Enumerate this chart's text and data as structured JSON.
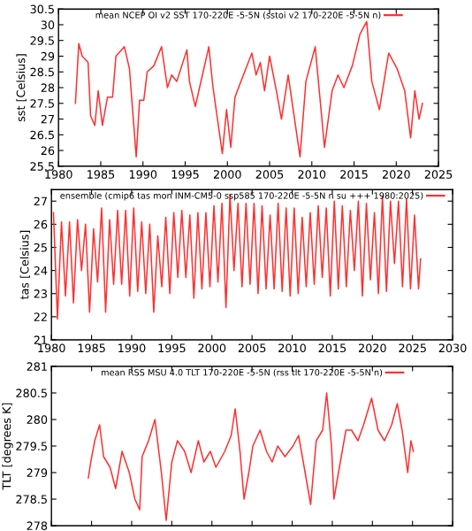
{
  "chart_data": [
    {
      "type": "line",
      "ylabel": "sst [Celsius]",
      "xlim": [
        1980,
        2025
      ],
      "xticks": [
        1980,
        1985,
        1990,
        1995,
        2000,
        2005,
        2010,
        2015,
        2020,
        2025
      ],
      "ylim": [
        25.5,
        30.5
      ],
      "yticks": [
        25.5,
        26,
        26.5,
        27,
        27.5,
        28,
        28.5,
        29,
        29.5,
        30,
        30.5
      ],
      "legend": "top",
      "grid": false,
      "series": [
        {
          "name": "mean NCEP OI v2 SST 170-220E -5-5N (sstoi v2 170-220E -5-5N n)",
          "color": "#ff3030",
          "x": [
            1982.0,
            1982.4,
            1982.8,
            1983.5,
            1983.8,
            1984.3,
            1984.7,
            1985.2,
            1985.8,
            1986.4,
            1986.8,
            1987.8,
            1988.4,
            1989.2,
            1989.6,
            1990.1,
            1990.5,
            1991.3,
            1992.2,
            1992.9,
            1993.4,
            1994.0,
            1995.2,
            1995.5,
            1996.2,
            1996.7,
            1997.8,
            1998.3,
            1999.4,
            1999.9,
            2000.4,
            2000.9,
            2001.6,
            2002.9,
            2003.4,
            2003.9,
            2004.4,
            2005.0,
            2005.8,
            2006.4,
            2007.2,
            2008.6,
            2009.3,
            2010.4,
            2011.5,
            2012.4,
            2013.1,
            2013.8,
            2014.8,
            2015.7,
            2016.5,
            2017.1,
            2018.0,
            2019.1,
            2020.1,
            2021.0,
            2021.7,
            2022.2,
            2022.7,
            2023.1
          ],
          "values": [
            27.5,
            29.4,
            29.0,
            28.8,
            27.1,
            26.8,
            27.9,
            26.8,
            27.7,
            27.7,
            29.0,
            29.3,
            28.6,
            25.8,
            27.6,
            27.6,
            28.5,
            28.7,
            29.3,
            28.0,
            28.4,
            28.2,
            29.2,
            28.2,
            27.4,
            28.0,
            29.3,
            28.0,
            25.9,
            27.3,
            26.1,
            27.7,
            28.2,
            29.1,
            28.4,
            28.8,
            27.9,
            29.0,
            27.9,
            27.0,
            28.4,
            25.8,
            28.2,
            29.3,
            26.1,
            27.9,
            28.4,
            28.0,
            28.7,
            29.7,
            30.1,
            28.2,
            27.3,
            29.1,
            28.6,
            27.9,
            26.4,
            27.9,
            27.0,
            27.5
          ]
        }
      ]
    },
    {
      "type": "line",
      "ylabel": "tas [Celsius]",
      "xlim": [
        1980,
        2030
      ],
      "xticks": [
        1980,
        1985,
        1990,
        1995,
        2000,
        2005,
        2010,
        2015,
        2020,
        2025,
        2030
      ],
      "ylim": [
        21,
        27.5
      ],
      "yticks": [
        21,
        22,
        23,
        24,
        25,
        26,
        27
      ],
      "legend": "top",
      "grid": false,
      "series": [
        {
          "name": "ensemble (cmip6 tas mon INM-CM5-0 ssp585 170-220E -5-5N n su +++ 1980:2025)",
          "color": "#ff3030",
          "x": [
            1980.25,
            1980.75,
            1981.25,
            1981.75,
            1982.25,
            1982.75,
            1983.25,
            1983.75,
            1984.25,
            1984.75,
            1985.25,
            1985.75,
            1986.25,
            1986.75,
            1987.25,
            1987.75,
            1988.25,
            1988.75,
            1989.25,
            1989.75,
            1990.25,
            1990.75,
            1991.25,
            1991.75,
            1992.25,
            1992.75,
            1993.25,
            1993.75,
            1994.25,
            1994.75,
            1995.25,
            1995.75,
            1996.25,
            1996.75,
            1997.25,
            1997.75,
            1998.25,
            1998.75,
            1999.25,
            1999.75,
            2000.25,
            2000.75,
            2001.25,
            2001.75,
            2002.25,
            2002.75,
            2003.25,
            2003.75,
            2004.25,
            2004.75,
            2005.25,
            2005.75,
            2006.25,
            2006.75,
            2007.25,
            2007.75,
            2008.25,
            2008.75,
            2009.25,
            2009.75,
            2010.25,
            2010.75,
            2011.25,
            2011.75,
            2012.25,
            2012.75,
            2013.25,
            2013.75,
            2014.25,
            2014.75,
            2015.25,
            2015.75,
            2016.25,
            2016.75,
            2017.25,
            2017.75,
            2018.25,
            2018.75,
            2019.25,
            2019.75,
            2020.25,
            2020.75,
            2021.25,
            2021.75,
            2022.25,
            2022.75,
            2023.25,
            2023.75,
            2024.25,
            2024.75,
            2025.25,
            2025.75,
            2026.0
          ],
          "values": [
            26.5,
            21.9,
            26.1,
            22.9,
            26.1,
            22.6,
            26.2,
            24.0,
            26.0,
            22.2,
            25.8,
            23.5,
            26.7,
            22.2,
            26.2,
            23.4,
            26.6,
            23.4,
            26.6,
            22.9,
            26.7,
            23.1,
            26.1,
            23.0,
            26.0,
            22.2,
            25.5,
            23.3,
            26.3,
            23.0,
            26.5,
            23.7,
            26.6,
            23.7,
            26.4,
            22.8,
            26.5,
            23.2,
            26.5,
            23.3,
            26.8,
            23.5,
            26.9,
            22.4,
            27.3,
            24.0,
            26.9,
            23.3,
            26.9,
            23.4,
            26.9,
            23.0,
            26.8,
            23.2,
            26.4,
            23.2,
            26.9,
            23.1,
            26.7,
            22.9,
            26.7,
            23.0,
            26.3,
            23.3,
            26.5,
            23.4,
            26.8,
            23.7,
            26.7,
            22.9,
            27.0,
            23.2,
            26.8,
            23.3,
            26.6,
            24.0,
            27.0,
            22.9,
            26.9,
            23.6,
            26.5,
            23.0,
            27.2,
            23.1,
            27.0,
            24.3,
            27.0,
            23.3,
            27.1,
            23.2,
            26.4,
            23.2,
            24.5
          ]
        }
      ]
    },
    {
      "type": "line",
      "ylabel": "TLT [degrees K]",
      "xlim": [
        1980,
        2030
      ],
      "xticks": [
        1980,
        1985,
        1990,
        1995,
        2000,
        2005,
        2010,
        2015,
        2020,
        2025,
        2030
      ],
      "ylim": [
        278,
        281
      ],
      "yticks": [
        278,
        278.5,
        279,
        279.5,
        280,
        280.5,
        281
      ],
      "legend": "top",
      "grid": false,
      "tick_labels": "y",
      "series": [
        {
          "name": "mean RSS MSU 4.0 TLT 170-220E -5-5N (rss tlt 170-220E -5-5N n)",
          "color": "#ff3030",
          "x": [
            1984.6,
            1984.9,
            1985.4,
            1986.0,
            1986.5,
            1987.3,
            1988.0,
            1988.8,
            1989.7,
            1990.4,
            1991.0,
            1991.3,
            1992.1,
            1992.9,
            1993.7,
            1994.3,
            1995.0,
            1995.7,
            1996.6,
            1997.4,
            1998.3,
            1999.0,
            1999.8,
            2000.5,
            2001.6,
            2002.4,
            2002.9,
            2003.5,
            2004.0,
            2004.6,
            2005.1,
            2006.0,
            2006.8,
            2007.5,
            2008.2,
            2009.1,
            2010.1,
            2010.8,
            2011.5,
            2012.3,
            2013.0,
            2013.8,
            2014.3,
            2014.9,
            2015.2,
            2016.0,
            2016.7,
            2017.4,
            2018.2,
            2018.9,
            2019.9,
            2020.7,
            2021.5,
            2022.4,
            2023.1,
            2023.7,
            2024.4,
            2024.8,
            2025.1
          ],
          "values": [
            278.9,
            279.2,
            279.6,
            279.9,
            279.3,
            279.1,
            278.7,
            279.4,
            279.0,
            278.5,
            278.3,
            279.3,
            279.6,
            280.0,
            279.0,
            278.1,
            279.2,
            279.6,
            279.4,
            279.0,
            279.6,
            279.2,
            279.4,
            279.1,
            279.4,
            279.7,
            280.2,
            279.4,
            278.5,
            279.0,
            279.5,
            279.8,
            279.4,
            279.2,
            279.5,
            279.3,
            279.5,
            279.7,
            279.1,
            278.4,
            279.6,
            279.8,
            280.5,
            279.5,
            278.5,
            279.2,
            279.8,
            279.8,
            279.6,
            279.9,
            280.4,
            279.8,
            279.6,
            279.9,
            280.3,
            279.8,
            279.0,
            279.6,
            279.4
          ]
        }
      ]
    }
  ]
}
